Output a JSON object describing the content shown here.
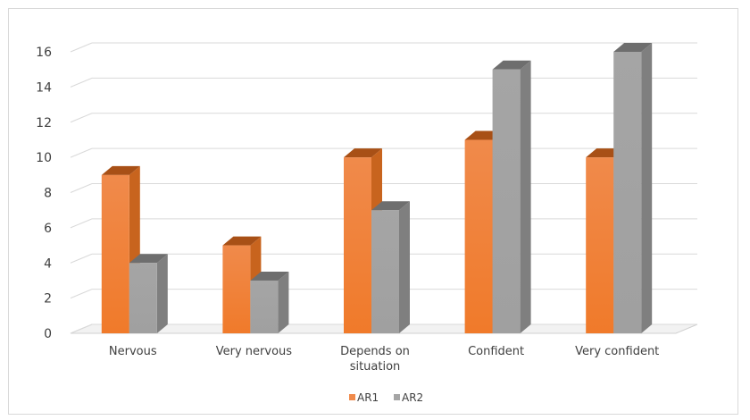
{
  "chart_data": {
    "type": "bar",
    "style": "3d-clustered-column",
    "categories": [
      "Nervous",
      "Very nervous",
      "Depends on situation",
      "Confident",
      "Very confident"
    ],
    "category_lines": [
      [
        "Nervous"
      ],
      [
        "Very nervous"
      ],
      [
        "Depends on",
        "situation"
      ],
      [
        "Confident"
      ],
      [
        "Very confident"
      ]
    ],
    "series": [
      {
        "name": "AR1",
        "values": [
          9,
          5,
          10,
          11,
          10
        ],
        "color": "#f08a4b",
        "color_dark": "#c8641e",
        "color_top": "#a85016"
      },
      {
        "name": "AR2",
        "values": [
          4,
          3,
          7,
          15,
          16
        ],
        "color": "#a5a5a5",
        "color_dark": "#7f7f7f",
        "color_top": "#6e6e6e"
      }
    ],
    "ylim": [
      0,
      16
    ],
    "yticks": [
      "0",
      "2",
      "4",
      "6",
      "8",
      "10",
      "12",
      "14",
      "16"
    ],
    "title": "",
    "xlabel": "",
    "ylabel": "",
    "grid": true,
    "legend_position": "bottom"
  }
}
